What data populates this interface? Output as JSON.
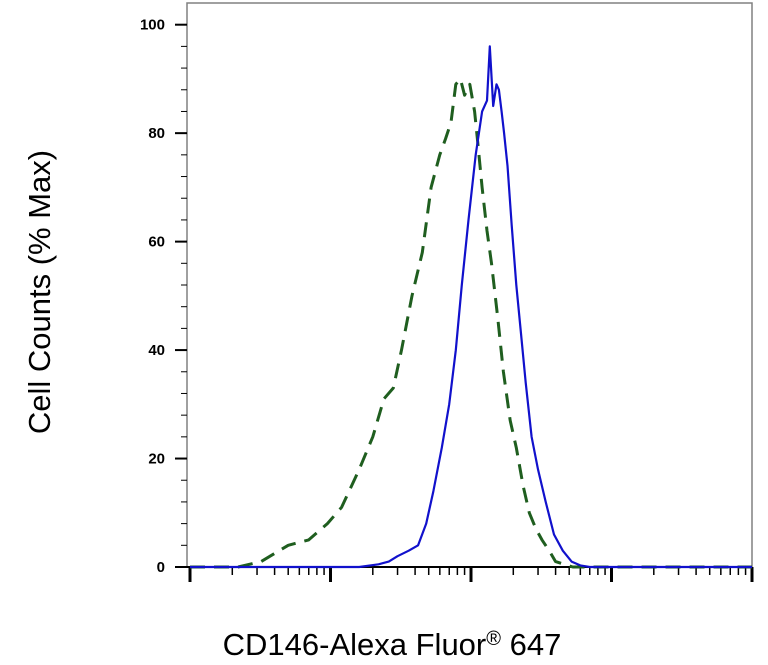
{
  "chart_data": {
    "type": "line",
    "title": "",
    "xlabel": "CD146-Alexa Fluor",
    "xlabel_sup": "®",
    "xlabel_suffix": " 647",
    "ylabel": "Cell Counts (% Max)",
    "xscale": "log",
    "xlim": [
      1,
      10000
    ],
    "ylim": [
      0,
      104
    ],
    "yticks": [
      0,
      20,
      40,
      60,
      80,
      100
    ],
    "ytick_labels": [
      "0",
      "20",
      "40",
      "60",
      "80",
      "100"
    ],
    "grid": false,
    "legend": "none",
    "series": [
      {
        "style": "dashed",
        "color": "#1f5e1f",
        "x": [
          1,
          2.2,
          3.2,
          5,
          7,
          9.5,
          12,
          16,
          20,
          24,
          28,
          32,
          38,
          45,
          52,
          60,
          66,
          72,
          78,
          84,
          90,
          98,
          106,
          112,
          120,
          130,
          140,
          155,
          170,
          190,
          210,
          235,
          260,
          290,
          320,
          360,
          400,
          460,
          530,
          600,
          700,
          1000,
          10000
        ],
        "y": [
          0,
          0,
          1,
          4,
          5,
          8,
          11,
          18,
          24,
          31,
          33,
          40,
          50,
          58,
          70,
          76,
          79,
          82,
          89,
          90,
          87,
          89,
          84,
          78,
          70,
          62,
          56,
          46,
          36,
          27,
          22,
          15,
          10,
          7,
          5,
          3,
          1,
          0.5,
          0,
          0,
          0,
          0,
          0
        ]
      },
      {
        "style": "solid",
        "color": "#1111cc",
        "x": [
          1,
          16,
          22,
          26,
          30,
          36,
          42,
          48,
          54,
          62,
          70,
          78,
          86,
          96,
          108,
          120,
          130,
          136,
          144,
          152,
          158,
          165,
          172,
          182,
          195,
          210,
          225,
          245,
          270,
          300,
          340,
          390,
          450,
          520,
          600,
          700,
          900,
          10000
        ],
        "y": [
          0,
          0,
          0.5,
          1,
          2,
          3,
          4,
          8,
          14,
          22,
          30,
          40,
          52,
          64,
          76,
          84,
          86,
          96,
          85,
          89,
          88,
          84,
          80,
          74,
          63,
          52,
          44,
          34,
          24,
          18,
          12,
          6,
          3,
          1,
          0.3,
          0,
          0,
          0
        ]
      }
    ]
  }
}
